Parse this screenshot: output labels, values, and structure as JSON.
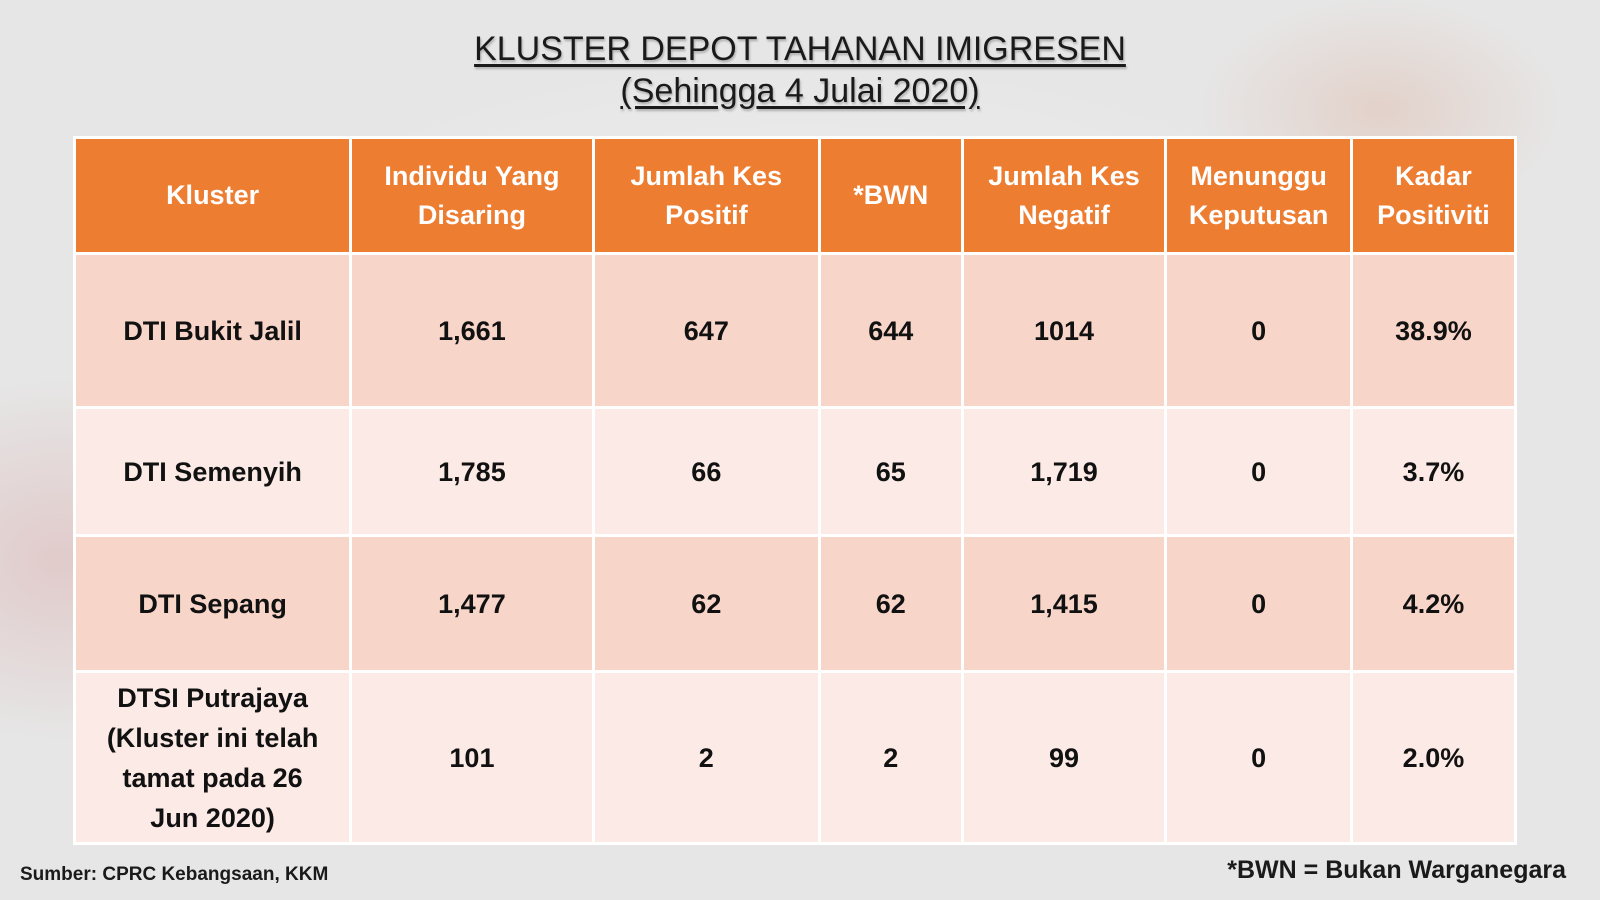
{
  "title": {
    "line1": "KLUSTER DEPOT TAHANAN IMIGRESEN",
    "line2": "(Sehingga 4 Julai 2020)"
  },
  "table": {
    "headers": [
      "Kluster",
      "Individu Yang Disaring",
      "Jumlah Kes Positif",
      "*BWN",
      "Jumlah Kes Negatif",
      "Menunggu Keputusan",
      "Kadar Positiviti"
    ],
    "rows": [
      {
        "kluster": "DTI Bukit Jalil",
        "individu_disaring": "1,661",
        "kes_positif": "647",
        "bwn": "644",
        "kes_negatif": "1014",
        "menunggu_keputusan": "0",
        "kadar_positiviti": "38.9%"
      },
      {
        "kluster": "DTI Semenyih",
        "individu_disaring": "1,785",
        "kes_positif": "66",
        "bwn": "65",
        "kes_negatif": "1,719",
        "menunggu_keputusan": "0",
        "kadar_positiviti": "3.7%"
      },
      {
        "kluster": "DTI Sepang",
        "individu_disaring": "1,477",
        "kes_positif": "62",
        "bwn": "62",
        "kes_negatif": "1,415",
        "menunggu_keputusan": "0",
        "kadar_positiviti": "4.2%"
      },
      {
        "kluster_lines": [
          "DTSI Putrajaya",
          "(Kluster ini telah",
          "tamat pada 26",
          "Jun 2020)"
        ],
        "individu_disaring": "101",
        "kes_positif": "2",
        "bwn": "2",
        "kes_negatif": "99",
        "menunggu_keputusan": "0",
        "kadar_positiviti": "2.0%"
      }
    ]
  },
  "source": "Sumber: CPRC Kebangsaan, KKM",
  "footnote": "*BWN = Bukan Warganegara",
  "colors": {
    "header_bg": "#ed7d31",
    "row_dark": "#f8d5c9",
    "row_light": "#fbeae5",
    "header_text": "#ffffff"
  }
}
